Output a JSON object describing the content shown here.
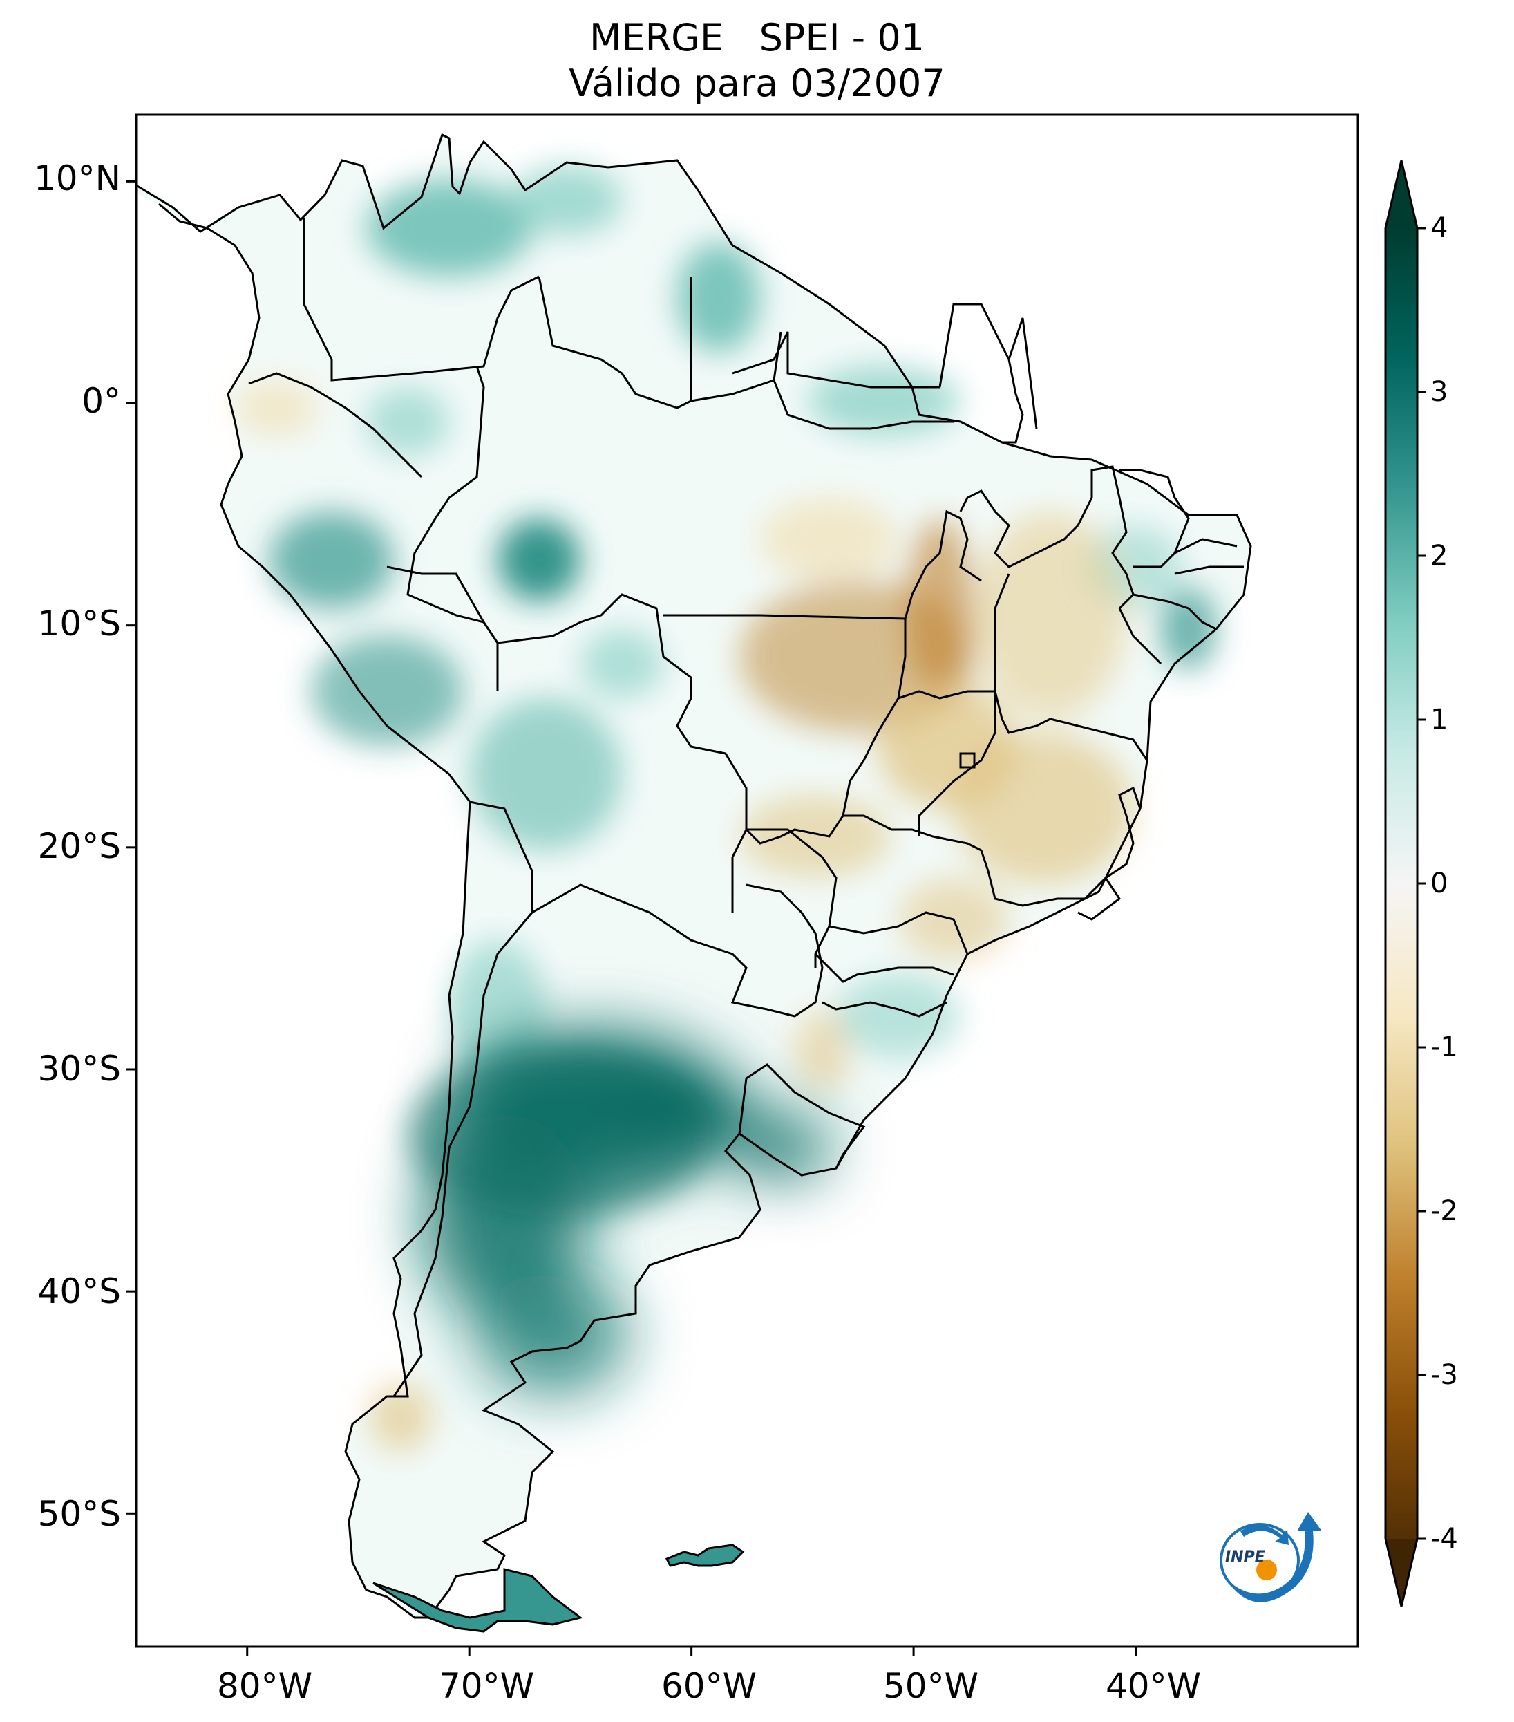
{
  "title": {
    "line1": "MERGE   SPEI - 01",
    "line2": "Válido para 03/2007"
  },
  "axes": {
    "lat_labels": [
      "10°N",
      "0°",
      "10°S",
      "20°S",
      "30°S",
      "40°S",
      "50°S"
    ],
    "lat_values": [
      10,
      0,
      -10,
      -20,
      -30,
      -40,
      -50
    ],
    "lon_labels": [
      "80°W",
      "70°W",
      "60°W",
      "50°W",
      "40°W"
    ],
    "lon_values": [
      -80,
      -70,
      -60,
      -50,
      -40
    ],
    "lon_range": [
      -85,
      -30
    ],
    "lat_range": [
      -56,
      13
    ]
  },
  "colorbar": {
    "min": -4,
    "max": 4,
    "tick_labels": [
      "4",
      "3",
      "2",
      "1",
      "0",
      "-1",
      "-2",
      "-3",
      "-4"
    ],
    "tick_values": [
      4,
      3,
      2,
      1,
      0,
      -1,
      -2,
      -3,
      -4
    ],
    "colors": [
      "#543005",
      "#8c510a",
      "#bf812d",
      "#dfc27d",
      "#f6e8c3",
      "#f5f5f5",
      "#c7eae5",
      "#80cdc1",
      "#35978f",
      "#01665e",
      "#003c30"
    ],
    "extend": "both"
  },
  "logo": {
    "text": "INPE",
    "colors": {
      "blue": "#1a72b8",
      "orange": "#f39200"
    }
  }
}
